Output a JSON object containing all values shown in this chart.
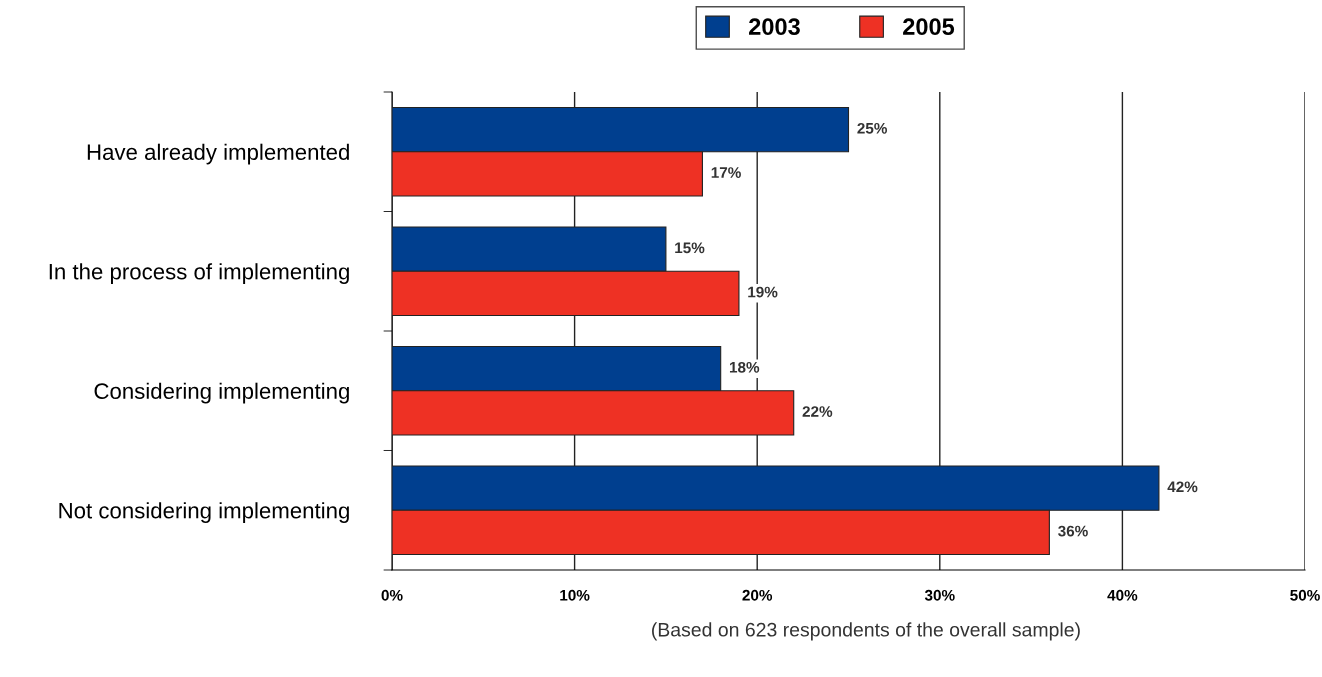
{
  "chart_data": {
    "type": "bar",
    "orientation": "horizontal",
    "categories": [
      "Have already implemented",
      "In the process of implementing",
      "Considering implementing",
      "Not considering implementing"
    ],
    "series": [
      {
        "name": "2003",
        "color": "#003f8f",
        "values": [
          25,
          15,
          18,
          42
        ],
        "value_labels": [
          "25%",
          "15%",
          "18%",
          "42%"
        ]
      },
      {
        "name": "2005",
        "color": "#ee3124",
        "values": [
          17,
          19,
          22,
          36
        ],
        "value_labels": [
          "17%",
          "19%",
          "22%",
          "36%"
        ]
      }
    ],
    "xlim": [
      0,
      50
    ],
    "xticks": [
      {
        "value": 0,
        "label": "0%"
      },
      {
        "value": 10,
        "label": "10%"
      },
      {
        "value": 20,
        "label": "20%"
      },
      {
        "value": 30,
        "label": "30%"
      },
      {
        "value": 40,
        "label": "40%"
      },
      {
        "value": 50,
        "label": "50%"
      }
    ],
    "grid": "x",
    "legend": "top",
    "annotations": [
      "(Based on 623 respondents of the overall sample)"
    ]
  }
}
